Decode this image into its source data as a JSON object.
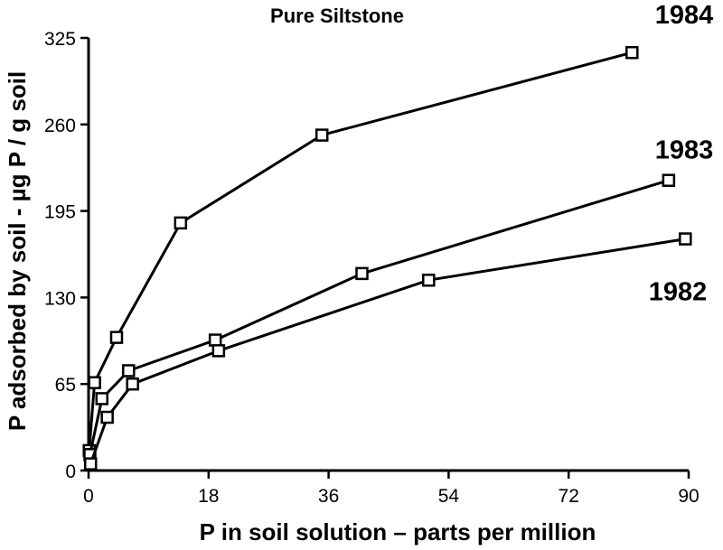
{
  "chart_data": {
    "type": "line",
    "title": "Pure Siltstone",
    "xlabel": "P in soil solution – parts per million",
    "ylabel": "P adsorbed by soil - µg P / g soil",
    "xlim": [
      0,
      90
    ],
    "ylim": [
      0,
      325
    ],
    "xticks": [
      0,
      18,
      36,
      54,
      72,
      90
    ],
    "yticks": [
      0,
      65,
      130,
      195,
      260,
      325
    ],
    "grid": false,
    "legend": "none",
    "marker": "open-square",
    "series": [
      {
        "name": "1984",
        "x": [
          0.1,
          0.9,
          4.2,
          13.8,
          35.0,
          81.5
        ],
        "y": [
          15,
          66,
          100,
          186,
          252,
          314
        ]
      },
      {
        "name": "1983",
        "x": [
          0.2,
          2.0,
          6.0,
          19.0,
          41.0,
          87.0
        ],
        "y": [
          12,
          54,
          75,
          98,
          148,
          218
        ]
      },
      {
        "name": "1982",
        "x": [
          0.3,
          2.8,
          6.6,
          19.5,
          51.0,
          89.5
        ],
        "y": [
          5,
          40,
          65,
          90,
          143,
          174
        ]
      }
    ]
  }
}
